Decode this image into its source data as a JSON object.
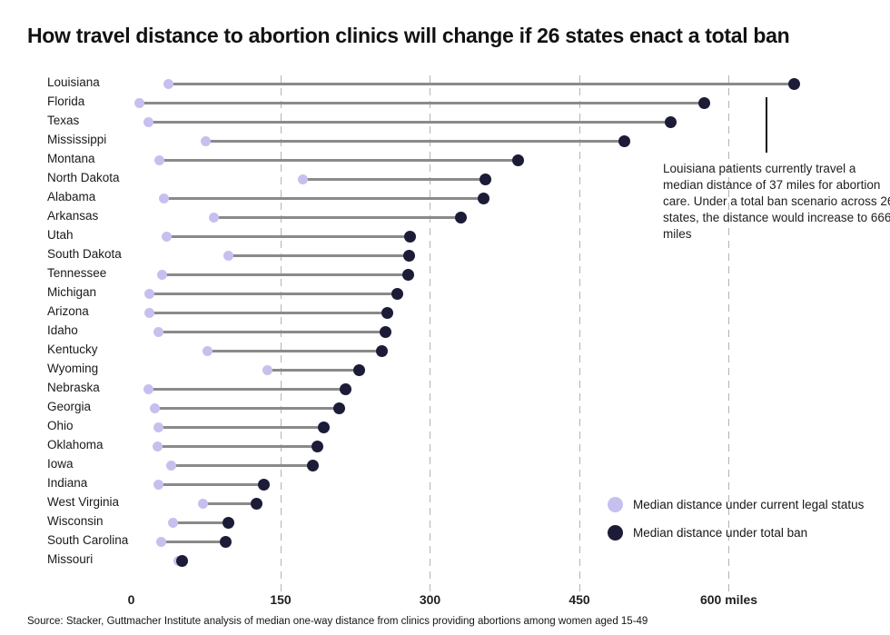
{
  "title": "How travel distance to abortion clinics will change if 26 states enact a total ban",
  "annotation": {
    "text": "Louisiana patients currently travel a median distance of 37 miles for abortion care. Under a total ban scenario across 26 states, the distance would increase to 666 miles"
  },
  "legend": [
    {
      "label": "Median distance under current legal status",
      "color": "#c6c0ef"
    },
    {
      "label": "Median distance under total ban",
      "color": "#1c1c38"
    }
  ],
  "source": "Source: Stacker, Guttmacher Institute analysis of median one-way distance from clinics providing abortions among women aged 15-49",
  "colors": {
    "current_dot": "#c6c0ef",
    "ban_dot": "#1c1c38",
    "connector": "#8a8a8a",
    "gridline": "#b3b3b3",
    "text": "#1a1a1a"
  },
  "chart_data": {
    "type": "dumbbell",
    "title": "How travel distance to abortion clinics will change if 26 states enact a total ban",
    "xlabel": "miles",
    "ylabel": "",
    "xlim": [
      0,
      690
    ],
    "x_ticks": [
      {
        "value": 0,
        "label": "0",
        "gridline": false
      },
      {
        "value": 150,
        "label": "150",
        "gridline": true
      },
      {
        "value": 300,
        "label": "300",
        "gridline": true
      },
      {
        "value": 450,
        "label": "450",
        "gridline": true
      },
      {
        "value": 600,
        "label": "600 miles",
        "gridline": true
      }
    ],
    "grid": "vertical-dashed",
    "legend_position": "bottom-right",
    "categories": [
      "Louisiana",
      "Florida",
      "Texas",
      "Mississippi",
      "Montana",
      "North Dakota",
      "Alabama",
      "Arkansas",
      "Utah",
      "South Dakota",
      "Tennessee",
      "Michigan",
      "Arizona",
      "Idaho",
      "Kentucky",
      "Wyoming",
      "Nebraska",
      "Georgia",
      "Ohio",
      "Oklahoma",
      "Iowa",
      "Indiana",
      "West Virginia",
      "Wisconsin",
      "South Carolina",
      "Missouri"
    ],
    "series": [
      {
        "name": "Median distance under current legal status",
        "values": [
          37,
          8,
          17,
          75,
          28,
          172,
          33,
          83,
          36,
          98,
          31,
          18,
          18,
          27,
          77,
          137,
          17,
          24,
          27,
          26,
          40,
          27,
          72,
          42,
          30,
          47
        ]
      },
      {
        "name": "Median distance under total ban",
        "values": [
          666,
          575,
          542,
          495,
          388,
          356,
          354,
          331,
          280,
          279,
          278,
          267,
          257,
          255,
          252,
          229,
          215,
          209,
          193,
          187,
          182,
          133,
          126,
          98,
          95,
          51
        ]
      }
    ]
  }
}
